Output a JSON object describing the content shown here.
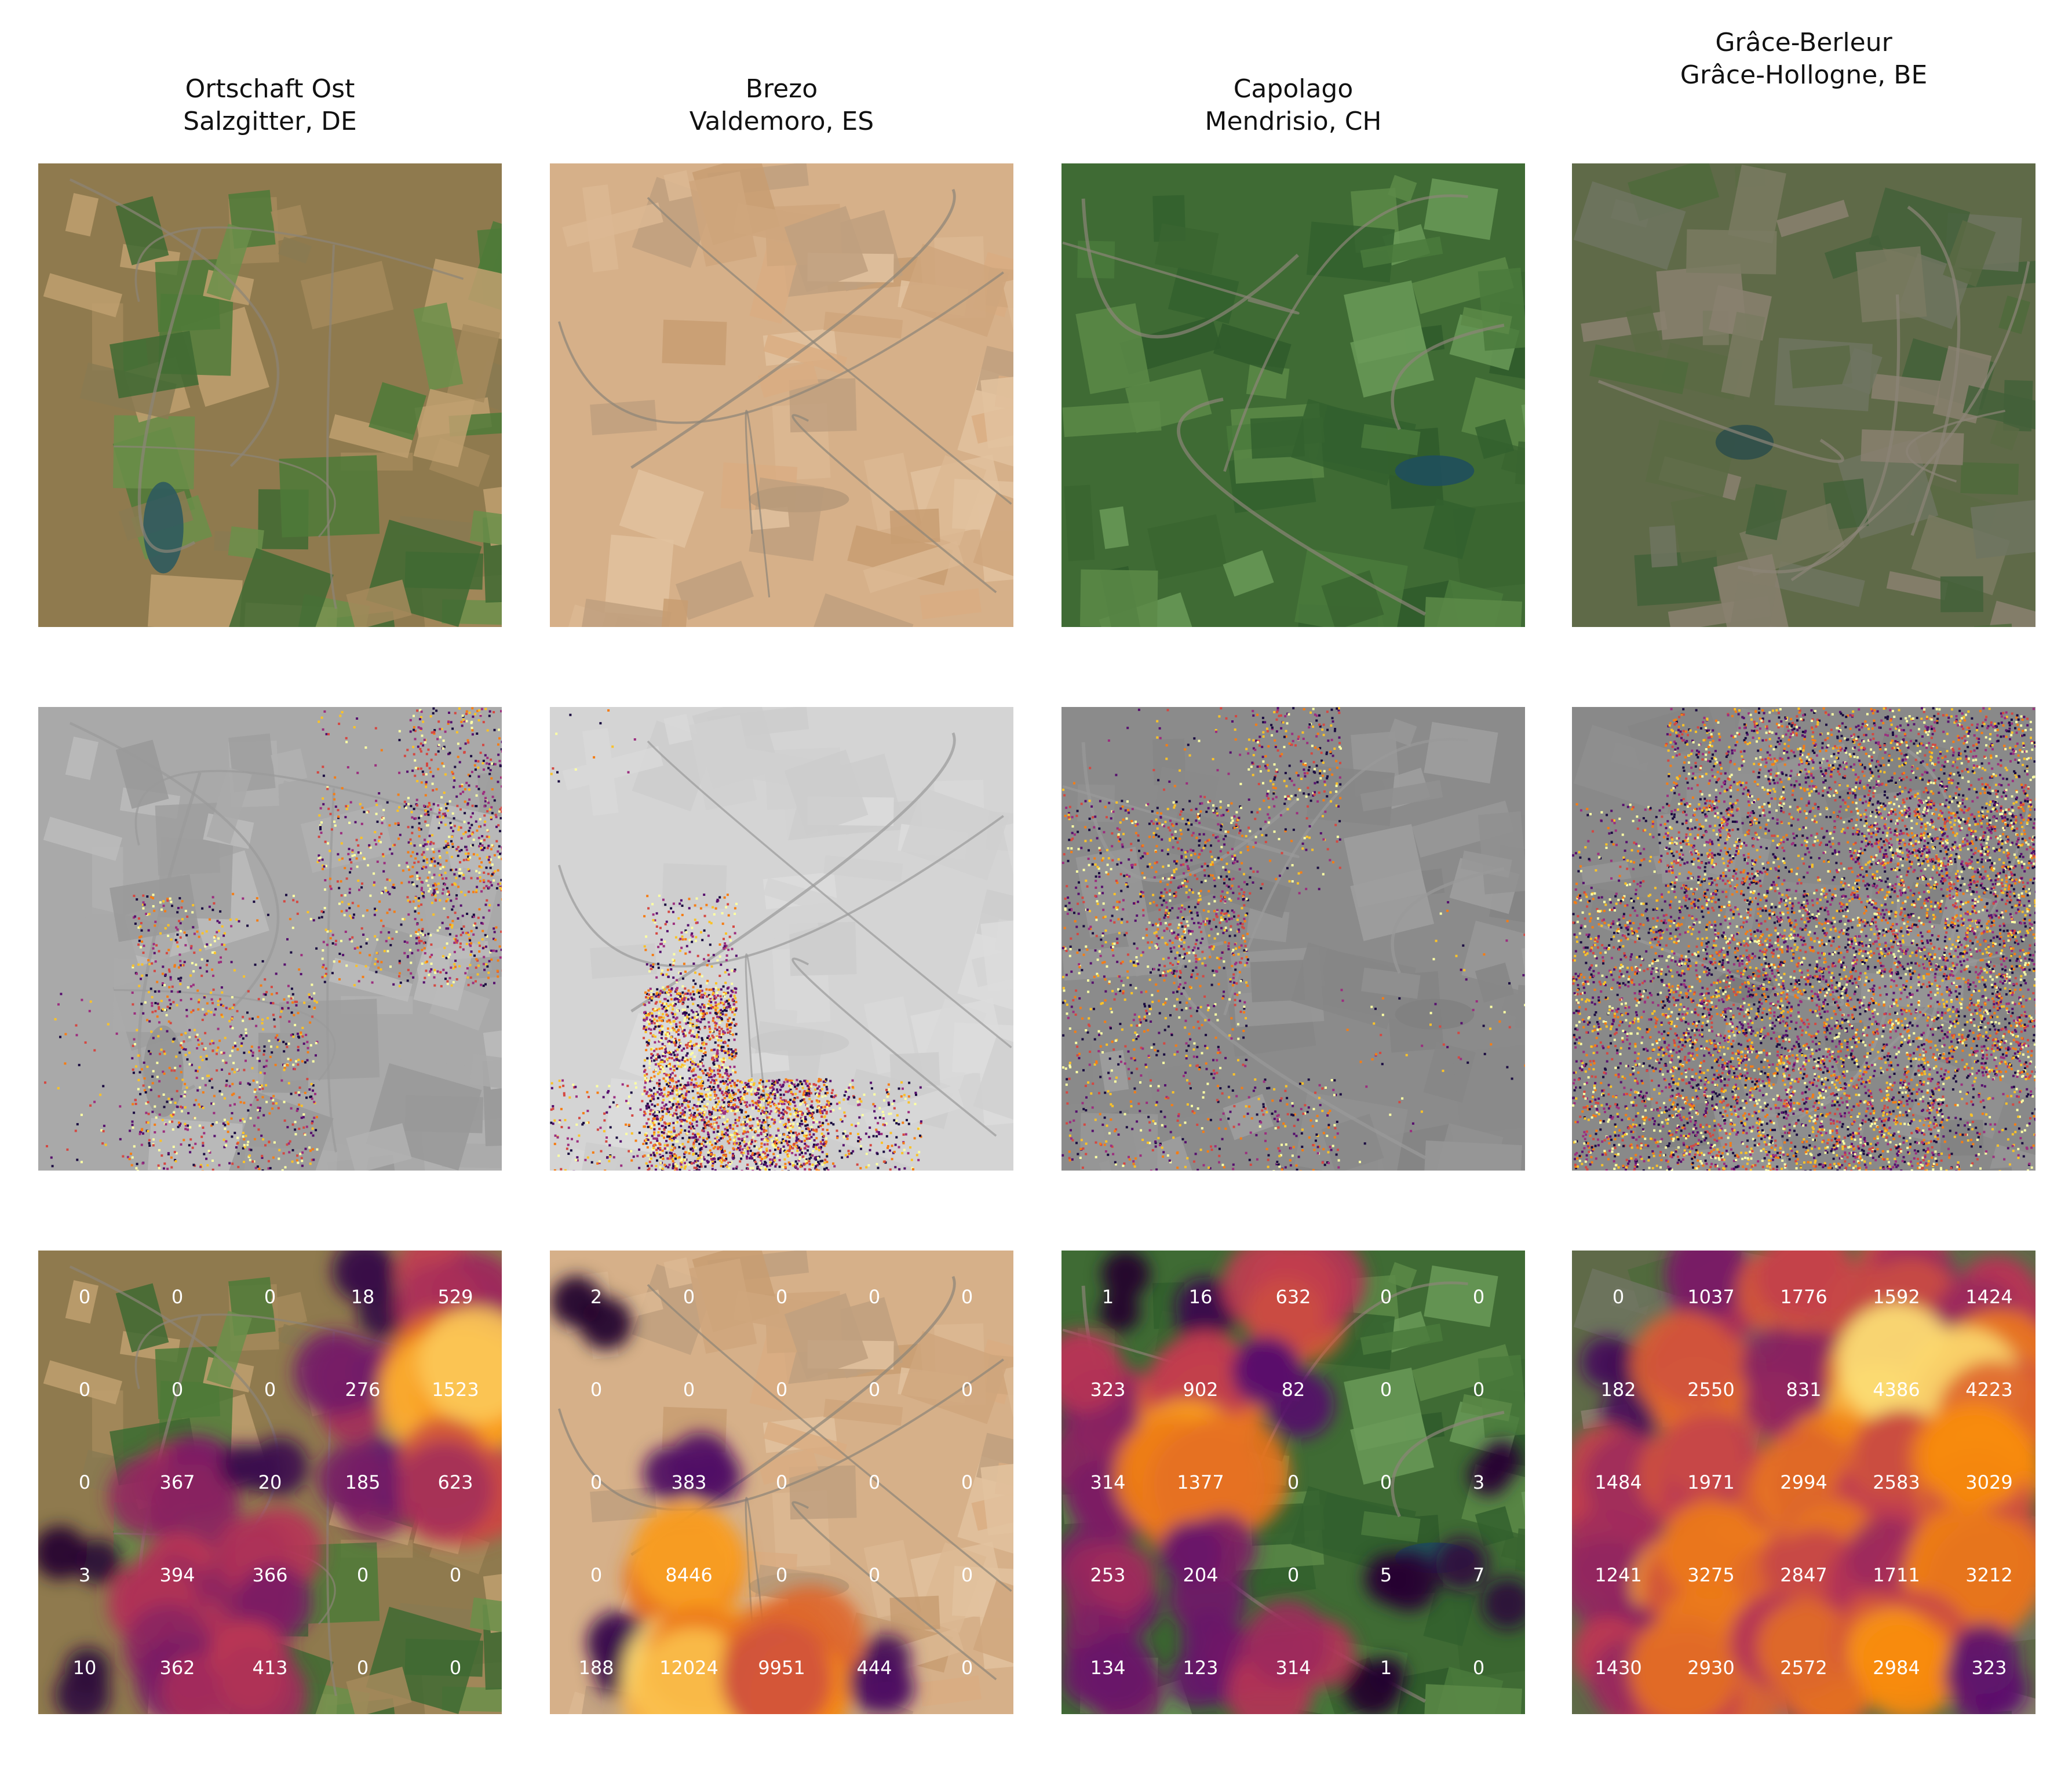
{
  "panels": [
    {
      "title": "Ortschaft Ost\nSalzgitter, DE",
      "rgb": {
        "base": "#8f7a4e",
        "field_colors": [
          "#6b8f4a",
          "#a58a5c",
          "#4d7a38",
          "#8a7a52",
          "#c0a070",
          "#3f6a33"
        ],
        "water": "#2f5a5e"
      },
      "gray": "#cfcfcf",
      "density": [
        [
          0,
          0,
          0,
          18,
          529
        ],
        [
          0,
          0,
          0,
          276,
          1523
        ],
        [
          0,
          367,
          20,
          185,
          623
        ],
        [
          3,
          394,
          366,
          0,
          0
        ],
        [
          10,
          362,
          413,
          0,
          0
        ]
      ]
    },
    {
      "title": "Brezo\nValdemoro, ES",
      "rgb": {
        "base": "#d6b089",
        "field_colors": [
          "#cfa67c",
          "#dcb893",
          "#c89d72",
          "#e2c29f",
          "#bfa07f",
          "#d9ad83"
        ],
        "water": "#b89a7a"
      },
      "gray": "#ececec",
      "density": [
        [
          2,
          0,
          0,
          0,
          0
        ],
        [
          0,
          0,
          0,
          0,
          0
        ],
        [
          0,
          383,
          0,
          0,
          0
        ],
        [
          0,
          8446,
          0,
          0,
          0
        ],
        [
          188,
          12024,
          9951,
          444,
          0
        ]
      ]
    },
    {
      "title": "Capolago\nMendrisio, CH",
      "rgb": {
        "base": "#3f6b34",
        "field_colors": [
          "#2f5a2c",
          "#4a7a3c",
          "#3a6530",
          "#5c8a48",
          "#33602e",
          "#6a9a58"
        ],
        "water": "#1f4f5c"
      },
      "gray": "#b5b5b5",
      "density": [
        [
          1,
          16,
          632,
          0,
          0
        ],
        [
          323,
          902,
          82,
          0,
          0
        ],
        [
          314,
          1377,
          0,
          0,
          3
        ],
        [
          253,
          204,
          0,
          5,
          7
        ],
        [
          134,
          123,
          314,
          1,
          0
        ]
      ]
    },
    {
      "title": "Grâce-Berleur\nGrâce-Hollogne, BE",
      "rgb": {
        "base": "#5f6a48",
        "field_colors": [
          "#4f6a3c",
          "#7a7a62",
          "#5a6a44",
          "#8a8070",
          "#43603a",
          "#6e7460"
        ],
        "water": "#2f4f4a"
      },
      "gray": "#a8a8a8",
      "density": [
        [
          0,
          1037,
          1776,
          1592,
          1424
        ],
        [
          182,
          2550,
          831,
          4386,
          4223
        ],
        [
          1484,
          1971,
          2994,
          2583,
          3029
        ],
        [
          1241,
          3275,
          2847,
          1711,
          3212
        ],
        [
          1430,
          2930,
          2572,
          2984,
          323
        ]
      ]
    }
  ]
}
